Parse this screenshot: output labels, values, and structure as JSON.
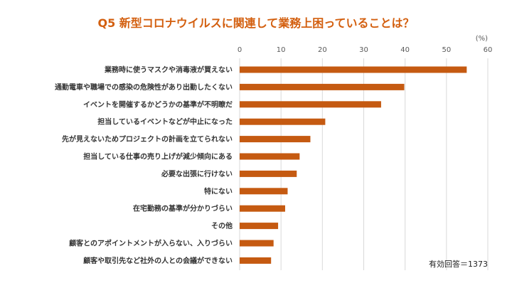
{
  "chart_data": {
    "type": "bar",
    "orientation": "horizontal",
    "title": "Q5 新型コロナウイルスに関連して業務上困っていることは？",
    "unit_label": "(%)",
    "note": "有効回答＝1373",
    "xlim": [
      0,
      60
    ],
    "ticks": [
      0,
      10,
      20,
      30,
      40,
      50,
      60
    ],
    "grid": true,
    "bar_color": "#c55a11",
    "title_color": "#d35f0f",
    "categories": [
      "業務時に使うマスクや消毒液が買えない",
      "通勤電車や職場での感染の危険性があり出勤したくない",
      "イベントを開催するかどうかの基準が不明瞭だ",
      "担当しているイベントなどが中止になった",
      "先が見えないためプロジェクトの計画を立てられない",
      "担当している仕事の売り上げが減少傾向にある",
      "必要な出張に行けない",
      "特にない",
      "在宅勤務の基準が分かりづらい",
      "その他",
      "顧客とのアポイントメントが入らない、入りづらい",
      "顧客や取引先など社外の人との会議ができない"
    ],
    "values": [
      54.9,
      39.8,
      34.2,
      20.7,
      17.1,
      14.5,
      13.8,
      11.6,
      11.0,
      9.3,
      8.2,
      7.6
    ]
  }
}
